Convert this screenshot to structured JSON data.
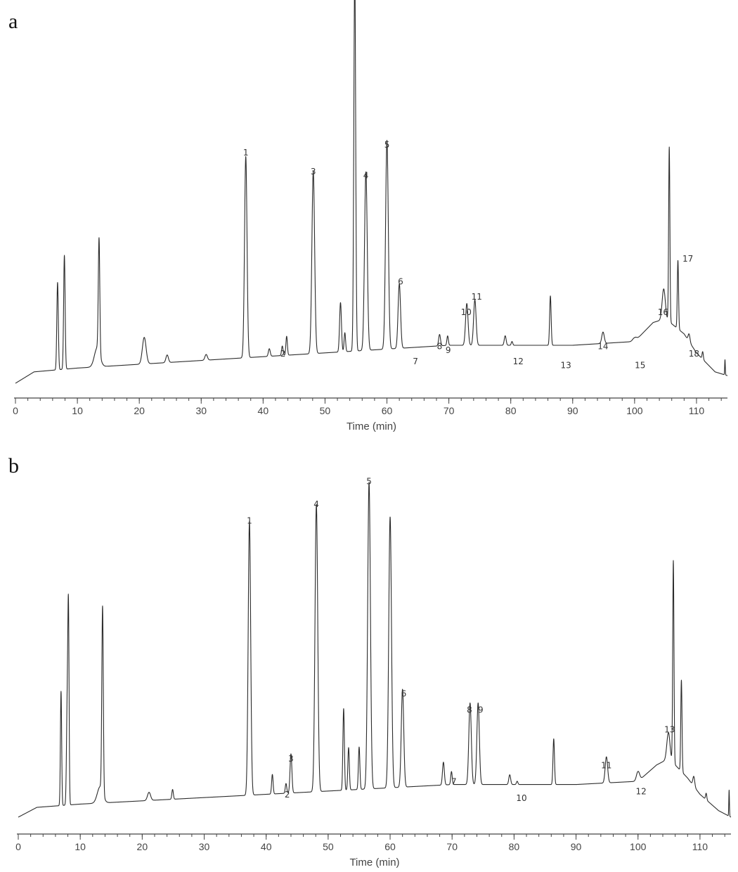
{
  "chart_data": [
    {
      "type": "line",
      "panel": "a",
      "title": "",
      "xlabel": "Time (min)",
      "ylabel": "",
      "xlim": [
        0,
        115
      ],
      "ylim": [
        0,
        100
      ],
      "xticks": [
        "0",
        "10",
        "20",
        "30",
        "40",
        "50",
        "60",
        "70",
        "80",
        "90",
        "100",
        "110"
      ],
      "grid": false,
      "legend": "none",
      "baseline": [
        [
          0,
          0
        ],
        [
          3,
          3
        ],
        [
          10,
          4
        ],
        [
          20,
          5
        ],
        [
          30,
          6
        ],
        [
          40,
          7
        ],
        [
          50,
          8
        ],
        [
          60,
          9
        ],
        [
          70,
          10
        ],
        [
          80,
          10
        ],
        [
          90,
          10
        ],
        [
          100,
          11
        ],
        [
          103,
          16
        ],
        [
          105,
          17
        ],
        [
          108,
          13
        ],
        [
          110,
          8
        ],
        [
          113,
          3
        ],
        [
          115,
          2
        ]
      ],
      "peaks": [
        {
          "t": 6.8,
          "h": 23,
          "w": 0.12
        },
        {
          "t": 7.9,
          "h": 30,
          "w": 0.12
        },
        {
          "t": 13.2,
          "h": 5,
          "w": 0.45
        },
        {
          "t": 13.5,
          "h": 30,
          "w": 0.12
        },
        {
          "t": 20.8,
          "h": 7,
          "w": 0.3
        },
        {
          "t": 24.5,
          "h": 2,
          "w": 0.2
        },
        {
          "t": 30.8,
          "h": 1.5,
          "w": 0.2
        },
        {
          "t": 37.2,
          "h": 53,
          "w": 0.2
        },
        {
          "t": 41,
          "h": 2,
          "w": 0.15
        },
        {
          "t": 43.1,
          "h": 2.5,
          "w": 0.12
        },
        {
          "t": 43.8,
          "h": 5,
          "w": 0.12
        },
        {
          "t": 48.1,
          "h": 48,
          "w": 0.22
        },
        {
          "t": 52.5,
          "h": 13,
          "w": 0.15
        },
        {
          "t": 53.2,
          "h": 5,
          "w": 0.12
        },
        {
          "t": 54.8,
          "h": 100,
          "w": 0.15
        },
        {
          "t": 56.6,
          "h": 47,
          "w": 0.22
        },
        {
          "t": 60,
          "h": 55,
          "w": 0.22
        },
        {
          "t": 62,
          "h": 17,
          "w": 0.2
        },
        {
          "t": 68.5,
          "h": 3,
          "w": 0.15
        },
        {
          "t": 69.8,
          "h": 2.5,
          "w": 0.12
        },
        {
          "t": 72.9,
          "h": 11,
          "w": 0.2
        },
        {
          "t": 74.2,
          "h": 12,
          "w": 0.2
        },
        {
          "t": 79.1,
          "h": 2.5,
          "w": 0.15
        },
        {
          "t": 80.2,
          "h": 1,
          "w": 0.12
        },
        {
          "t": 86.4,
          "h": 13,
          "w": 0.12
        },
        {
          "t": 94.9,
          "h": 3,
          "w": 0.2
        },
        {
          "t": 100,
          "h": 1,
          "w": 0.3
        },
        {
          "t": 104.7,
          "h": 8,
          "w": 0.25
        },
        {
          "t": 105.6,
          "h": 46,
          "w": 0.1
        },
        {
          "t": 107,
          "h": 18,
          "w": 0.1
        },
        {
          "t": 108.8,
          "h": 2,
          "w": 0.15
        },
        {
          "t": 111,
          "h": 2,
          "w": 0.1
        },
        {
          "t": 114.6,
          "h": 4,
          "w": 0.05
        }
      ],
      "annotations": [
        {
          "text": "1",
          "x": 37.2,
          "y": 60
        },
        {
          "text": "2",
          "x": 43.2,
          "y": 7
        },
        {
          "text": "3",
          "x": 48.1,
          "y": 55
        },
        {
          "text": "4",
          "x": 56.6,
          "y": 54
        },
        {
          "text": "5",
          "x": 60,
          "y": 62
        },
        {
          "text": "6",
          "x": 62.2,
          "y": 26
        },
        {
          "text": "7",
          "x": 64.6,
          "y": 5
        },
        {
          "text": "8",
          "x": 68.5,
          "y": 9
        },
        {
          "text": "9",
          "x": 69.9,
          "y": 8
        },
        {
          "text": "10",
          "x": 72.8,
          "y": 18
        },
        {
          "text": "11",
          "x": 74.5,
          "y": 22
        },
        {
          "text": "12",
          "x": 81.2,
          "y": 5
        },
        {
          "text": "13",
          "x": 88.9,
          "y": 4
        },
        {
          "text": "14",
          "x": 94.9,
          "y": 9
        },
        {
          "text": "15",
          "x": 100.9,
          "y": 4
        },
        {
          "text": "16",
          "x": 104.6,
          "y": 18
        },
        {
          "text": "17",
          "x": 108.6,
          "y": 32
        },
        {
          "text": "18",
          "x": 109.6,
          "y": 7
        }
      ]
    },
    {
      "type": "line",
      "panel": "b",
      "title": "",
      "xlabel": "Time (min)",
      "ylabel": "",
      "xlim": [
        0,
        115
      ],
      "ylim": [
        0,
        100
      ],
      "xticks": [
        "0",
        "10",
        "20",
        "30",
        "40",
        "50",
        "60",
        "70",
        "80",
        "90",
        "100",
        "110"
      ],
      "grid": false,
      "legend": "none",
      "baseline": [
        [
          0,
          0
        ],
        [
          3,
          3
        ],
        [
          10,
          4
        ],
        [
          20,
          5
        ],
        [
          30,
          6
        ],
        [
          40,
          7
        ],
        [
          50,
          8
        ],
        [
          60,
          9
        ],
        [
          70,
          10
        ],
        [
          80,
          10
        ],
        [
          90,
          10
        ],
        [
          100,
          11
        ],
        [
          103,
          16
        ],
        [
          105,
          18
        ],
        [
          108,
          12
        ],
        [
          110,
          7
        ],
        [
          113,
          2
        ],
        [
          115,
          0
        ]
      ],
      "peaks": [
        {
          "t": 6.9,
          "h": 35,
          "w": 0.1
        },
        {
          "t": 7.9,
          "h": 30,
          "w": 0.12
        },
        {
          "t": 8.1,
          "h": 56,
          "w": 0.1
        },
        {
          "t": 13.2,
          "h": 5,
          "w": 0.45
        },
        {
          "t": 13.6,
          "h": 57,
          "w": 0.12
        },
        {
          "t": 21.1,
          "h": 2.5,
          "w": 0.25
        },
        {
          "t": 24.9,
          "h": 3,
          "w": 0.12
        },
        {
          "t": 37.3,
          "h": 84,
          "w": 0.2
        },
        {
          "t": 41,
          "h": 6,
          "w": 0.12
        },
        {
          "t": 43.2,
          "h": 3,
          "w": 0.12
        },
        {
          "t": 44,
          "h": 12,
          "w": 0.15
        },
        {
          "t": 48.1,
          "h": 88,
          "w": 0.22
        },
        {
          "t": 52.5,
          "h": 25,
          "w": 0.12
        },
        {
          "t": 53.3,
          "h": 13,
          "w": 0.12
        },
        {
          "t": 55,
          "h": 13,
          "w": 0.12
        },
        {
          "t": 56.6,
          "h": 94,
          "w": 0.22
        },
        {
          "t": 60,
          "h": 83,
          "w": 0.22
        },
        {
          "t": 62,
          "h": 30,
          "w": 0.2
        },
        {
          "t": 68.6,
          "h": 7,
          "w": 0.15
        },
        {
          "t": 69.9,
          "h": 4,
          "w": 0.12
        },
        {
          "t": 72.9,
          "h": 25,
          "w": 0.2
        },
        {
          "t": 74.2,
          "h": 25,
          "w": 0.2
        },
        {
          "t": 79.3,
          "h": 3,
          "w": 0.15
        },
        {
          "t": 80.5,
          "h": 1,
          "w": 0.12
        },
        {
          "t": 86.4,
          "h": 14,
          "w": 0.12
        },
        {
          "t": 94.9,
          "h": 8,
          "w": 0.2
        },
        {
          "t": 100,
          "h": 3,
          "w": 0.25
        },
        {
          "t": 104.9,
          "h": 8,
          "w": 0.25
        },
        {
          "t": 105.7,
          "h": 62,
          "w": 0.1
        },
        {
          "t": 107,
          "h": 28,
          "w": 0.1
        },
        {
          "t": 109,
          "h": 3,
          "w": 0.15
        },
        {
          "t": 111,
          "h": 2,
          "w": 0.1
        },
        {
          "t": 114.7,
          "h": 8,
          "w": 0.05
        }
      ],
      "annotations": [
        {
          "text": "1",
          "x": 37.3,
          "y": 90
        },
        {
          "text": "2",
          "x": 43.4,
          "y": 6
        },
        {
          "text": "3",
          "x": 44,
          "y": 17
        },
        {
          "text": "4",
          "x": 48.1,
          "y": 95
        },
        {
          "text": "5",
          "x": 56.6,
          "y": 102
        },
        {
          "text": "6",
          "x": 62.2,
          "y": 37
        },
        {
          "text": "7",
          "x": 70.3,
          "y": 10
        },
        {
          "text": "8",
          "x": 72.8,
          "y": 32
        },
        {
          "text": "9",
          "x": 74.6,
          "y": 32
        },
        {
          "text": "10",
          "x": 81.2,
          "y": 5
        },
        {
          "text": "11",
          "x": 94.9,
          "y": 15
        },
        {
          "text": "12",
          "x": 100.5,
          "y": 7
        },
        {
          "text": "13",
          "x": 105.1,
          "y": 26
        }
      ]
    }
  ]
}
